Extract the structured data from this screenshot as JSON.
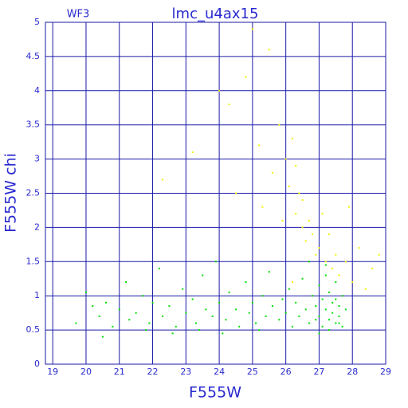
{
  "chart_data": {
    "type": "scatter",
    "title": "lmc_u4ax15",
    "subtitle": "WF3",
    "x_label": "F555W",
    "y_label": "F555W chi",
    "xlim": [
      18.78,
      29
    ],
    "ylim": [
      0,
      5
    ],
    "xticks": [
      19,
      20,
      21,
      22,
      23,
      24,
      25,
      26,
      27,
      28,
      29
    ],
    "yticks": [
      0,
      0.5,
      1,
      1.5,
      2,
      2.5,
      3,
      3.5,
      4,
      4.5,
      5
    ],
    "grid": true,
    "series": [
      {
        "color": "#00e000",
        "x": [
          19.7,
          20.0,
          20.2,
          20.4,
          20.6,
          20.8,
          21.0,
          21.2,
          21.3,
          21.5,
          21.7,
          21.9,
          22.0,
          22.2,
          22.3,
          22.5,
          22.7,
          22.9,
          23.0,
          23.2,
          23.3,
          23.5,
          23.6,
          23.8,
          23.9,
          24.0,
          24.2,
          24.3,
          24.5,
          24.6,
          24.8,
          24.9,
          25.0,
          25.1,
          25.3,
          25.4,
          25.5,
          25.6,
          25.8,
          25.9,
          26.0,
          26.1,
          26.2,
          26.3,
          26.4,
          26.5,
          26.6,
          26.7,
          26.8,
          26.9,
          27.0,
          27.0,
          27.1,
          27.1,
          27.2,
          27.2,
          27.3,
          27.3,
          27.4,
          27.4,
          27.5,
          27.5,
          27.6,
          27.6,
          27.7,
          27.7,
          27.8,
          26.9,
          27.2,
          27.5,
          25.2,
          24.1,
          23.4,
          22.6,
          21.8,
          20.5,
          26.7,
          27.3,
          27.6,
          27.0
        ],
        "values": [
          0.6,
          1.05,
          0.85,
          0.7,
          0.9,
          0.55,
          0.8,
          1.2,
          0.65,
          0.75,
          1.0,
          0.6,
          0.9,
          1.4,
          0.7,
          0.85,
          0.55,
          1.1,
          0.75,
          0.95,
          0.6,
          1.3,
          0.8,
          0.7,
          1.5,
          0.9,
          0.65,
          1.05,
          0.8,
          0.55,
          1.2,
          0.75,
          0.9,
          0.6,
          1.0,
          0.7,
          1.35,
          0.85,
          0.65,
          0.95,
          0.75,
          1.1,
          0.55,
          0.9,
          0.7,
          1.25,
          0.8,
          0.6,
          1.0,
          0.85,
          0.7,
          1.15,
          0.55,
          0.95,
          0.8,
          1.3,
          0.65,
          1.05,
          0.75,
          0.9,
          0.6,
          1.2,
          0.85,
          0.7,
          1.0,
          0.55,
          0.8,
          0.65,
          1.45,
          0.95,
          0.5,
          0.45,
          0.5,
          0.45,
          0.5,
          0.4,
          1.5,
          0.5,
          0.6,
          0.45
        ]
      },
      {
        "color": "#f0f000",
        "x": [
          24.3,
          24.5,
          24.8,
          25.0,
          25.2,
          25.3,
          25.5,
          25.6,
          25.8,
          25.9,
          26.0,
          26.1,
          26.2,
          26.3,
          26.3,
          26.4,
          26.5,
          26.5,
          26.6,
          26.7,
          26.8,
          26.9,
          27.0,
          27.1,
          27.2,
          27.3,
          27.4,
          27.5,
          27.6,
          27.8,
          28.0,
          28.2,
          28.4,
          28.6,
          28.8,
          22.3,
          23.2,
          24.0,
          26.2,
          27.9
        ],
        "values": [
          3.8,
          2.5,
          4.2,
          4.9,
          3.2,
          2.3,
          4.6,
          2.8,
          3.5,
          2.1,
          3.0,
          2.6,
          3.3,
          2.9,
          2.2,
          2.5,
          2.0,
          2.4,
          1.8,
          2.1,
          1.9,
          1.6,
          1.7,
          2.2,
          1.5,
          1.9,
          1.4,
          1.6,
          1.3,
          1.5,
          1.2,
          1.7,
          1.1,
          1.4,
          1.6,
          2.7,
          3.1,
          4.0,
          1.2,
          2.3
        ]
      }
    ]
  }
}
